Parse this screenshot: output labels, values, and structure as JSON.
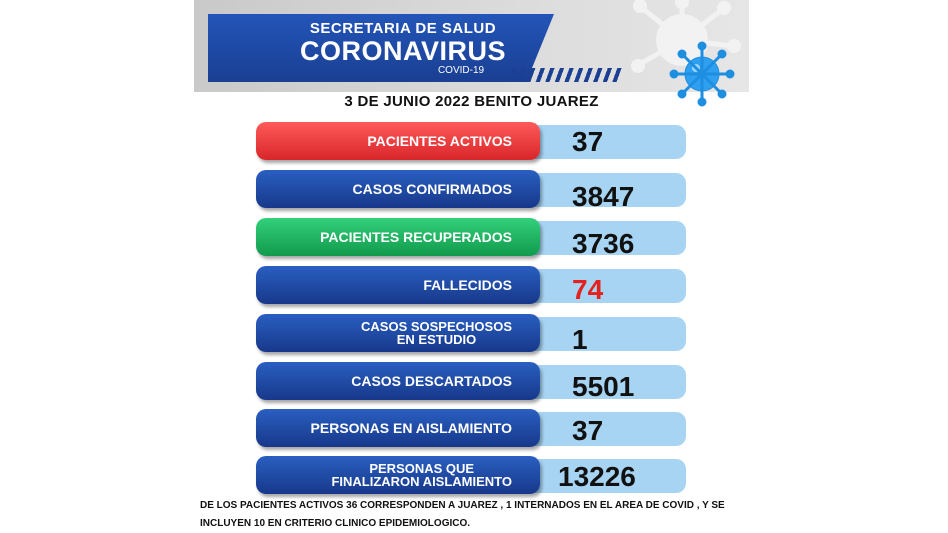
{
  "header": {
    "line1": "SECRETARIA DE SALUD",
    "line2": "CORONAVIRUS",
    "line3": "COVID-19"
  },
  "date_line": "3 DE  JUNIO  2022  BENITO JUAREZ",
  "stats": [
    {
      "label": "PACIENTES ACTIVOS",
      "value": "37",
      "label_color": "#e3302f"
    },
    {
      "label": "CASOS CONFIRMADOS",
      "value": "3847",
      "label_color": "#1f4aa6"
    },
    {
      "label": "PACIENTES RECUPERADOS",
      "value": "3736",
      "label_color": "#1fb864"
    },
    {
      "label": "FALLECIDOS",
      "value": "74",
      "label_color": "#1f4aa6",
      "value_color": "#e3211e"
    },
    {
      "label_line1": "CASOS SOSPECHOSOS",
      "label_line2": "EN ESTUDIO",
      "value": "1",
      "label_color": "#1f4aa6"
    },
    {
      "label": "CASOS DESCARTADOS",
      "value": "5501",
      "label_color": "#1f4aa6"
    },
    {
      "label": "PERSONAS EN AISLAMIENTO",
      "value": "37",
      "label_color": "#1f4aa6"
    },
    {
      "label_line1": "PERSONAS QUE",
      "label_line2": "FINALIZARON AISLAMIENTO",
      "value": "13226",
      "label_color": "#1f4aa6"
    }
  ],
  "footnote": "DE LOS PACIENTES ACTIVOS 36 CORRESPONDEN A JUAREZ  , 1 INTERNADOS  EN EL AREA DE COVID  , Y  SE INCLUYEN 10  EN CRITERIO CLINICO  EPIDEMIOLOGICO.",
  "icons": {
    "virus": "virus-icon"
  },
  "colors": {
    "value_box": "#a7d4f2",
    "header_blue": "#1f4aa6"
  }
}
